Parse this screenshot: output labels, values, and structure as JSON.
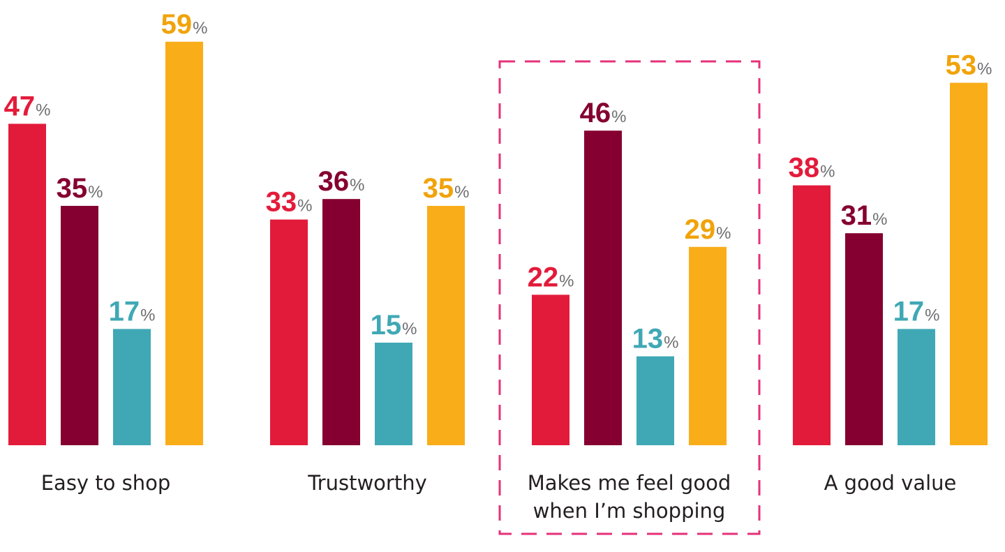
{
  "chart_data": {
    "type": "bar",
    "title": "",
    "xlabel": "",
    "ylabel": "",
    "ylim": [
      0,
      60
    ],
    "grid": false,
    "legend": "none",
    "unit_suffix": "%",
    "categories": [
      [
        "Easy to shop"
      ],
      [
        "Trustworthy"
      ],
      [
        "Makes me feel good",
        "when I’m shopping"
      ],
      [
        "A good value"
      ]
    ],
    "highlighted_category": 2,
    "series": [
      {
        "color": "#e31b3a",
        "values": [
          47,
          33,
          22,
          38
        ]
      },
      {
        "color": "#850030",
        "values": [
          35,
          36,
          46,
          31
        ]
      },
      {
        "color": "#40a8b5",
        "values": [
          17,
          15,
          13,
          17
        ]
      },
      {
        "color": "#f9ad19",
        "values": [
          59,
          35,
          29,
          53
        ]
      }
    ],
    "colors": {
      "highlight_border": "#e5317a",
      "percent_sign": "#6d6e70",
      "category_text": "#231f20"
    }
  }
}
